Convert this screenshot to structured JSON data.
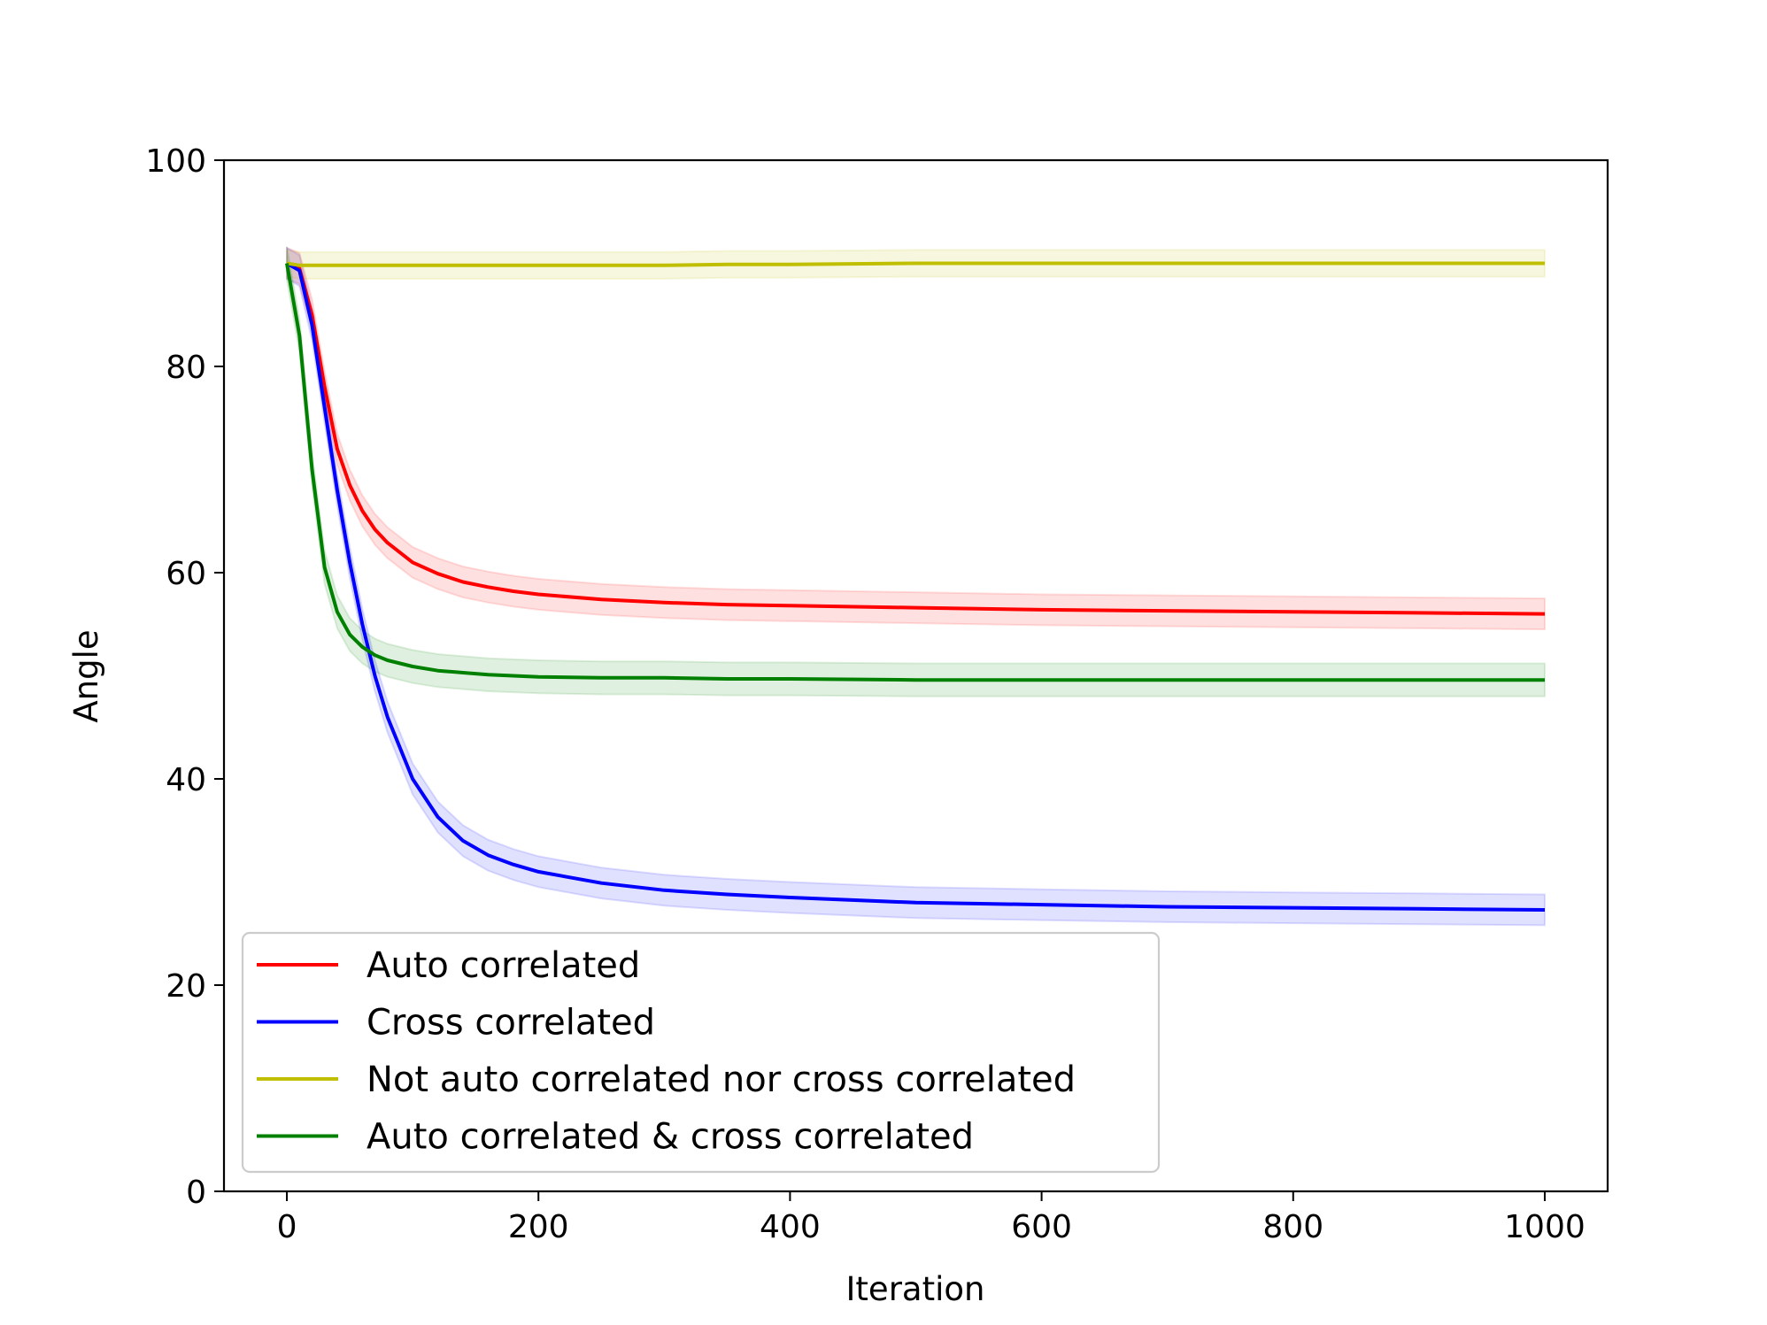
{
  "chart_data": {
    "type": "line",
    "xlabel": "Iteration",
    "ylabel": "Angle",
    "xlim": [
      -50,
      1050
    ],
    "ylim": [
      0,
      100
    ],
    "xticks": [
      0,
      200,
      400,
      600,
      800,
      1000
    ],
    "yticks": [
      0,
      20,
      40,
      60,
      80,
      100
    ],
    "grid": false,
    "legend_position": "lower-left",
    "x": [
      0,
      10,
      20,
      30,
      40,
      50,
      60,
      70,
      80,
      100,
      120,
      140,
      160,
      180,
      200,
      250,
      300,
      350,
      400,
      500,
      600,
      700,
      800,
      900,
      1000
    ],
    "series": [
      {
        "name": "Auto correlated",
        "color": "#ff0000",
        "values": [
          90,
          89.5,
          85,
          78,
          72,
          68.5,
          66,
          64.2,
          62.9,
          61.0,
          59.9,
          59.1,
          58.6,
          58.2,
          57.9,
          57.4,
          57.1,
          56.9,
          56.8,
          56.6,
          56.4,
          56.3,
          56.2,
          56.1,
          56.0
        ],
        "band": 1.5
      },
      {
        "name": "Cross correlated",
        "color": "#0000ff",
        "values": [
          90,
          89.3,
          84,
          76,
          68,
          61,
          55,
          50,
          46,
          40,
          36.3,
          34.0,
          32.6,
          31.7,
          31.0,
          29.9,
          29.2,
          28.8,
          28.5,
          28.0,
          27.8,
          27.6,
          27.5,
          27.4,
          27.3
        ],
        "band": 1.5
      },
      {
        "name": "Not auto correlated nor cross correlated",
        "color": "#bfbf00",
        "values": [
          90,
          89.8,
          89.8,
          89.8,
          89.8,
          89.8,
          89.8,
          89.8,
          89.8,
          89.8,
          89.8,
          89.8,
          89.8,
          89.8,
          89.8,
          89.8,
          89.8,
          89.9,
          89.9,
          90.0,
          90.0,
          90.0,
          90.0,
          90.0,
          90.0
        ],
        "band": 1.3
      },
      {
        "name": "Auto correlated & cross correlated",
        "color": "#008000",
        "values": [
          90,
          83,
          70,
          60.5,
          56.2,
          54.0,
          52.8,
          52.0,
          51.5,
          50.9,
          50.5,
          50.3,
          50.1,
          50.0,
          49.9,
          49.8,
          49.8,
          49.7,
          49.7,
          49.6,
          49.6,
          49.6,
          49.6,
          49.6,
          49.6
        ],
        "band": 1.6
      }
    ]
  }
}
